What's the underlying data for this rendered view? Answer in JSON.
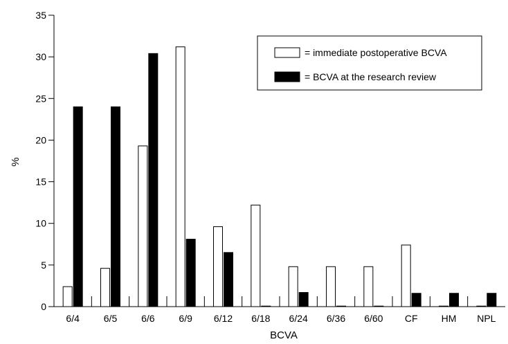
{
  "chart_data": {
    "type": "bar",
    "title": "",
    "xlabel": "BCVA",
    "ylabel": "%",
    "ylim": [
      0,
      35
    ],
    "yticks": [
      0,
      5,
      10,
      15,
      20,
      25,
      30,
      35
    ],
    "grid": false,
    "legend_position": "top-right",
    "categories": [
      "6/4",
      "6/5",
      "6/6",
      "6/9",
      "6/12",
      "6/18",
      "6/24",
      "6/36",
      "6/60",
      "CF",
      "HM",
      "NPL"
    ],
    "series": [
      {
        "name": "= immediate postoperative BCVA",
        "color": "#ffffff",
        "values": [
          2.4,
          4.6,
          19.3,
          31.2,
          9.6,
          12.2,
          4.8,
          4.8,
          4.8,
          7.4,
          0,
          0
        ]
      },
      {
        "name": "= BCVA at the research review",
        "color": "#000000",
        "values": [
          24.0,
          24.0,
          30.4,
          8.1,
          6.5,
          0,
          1.7,
          0,
          0,
          1.6,
          1.6,
          1.6
        ]
      }
    ]
  }
}
